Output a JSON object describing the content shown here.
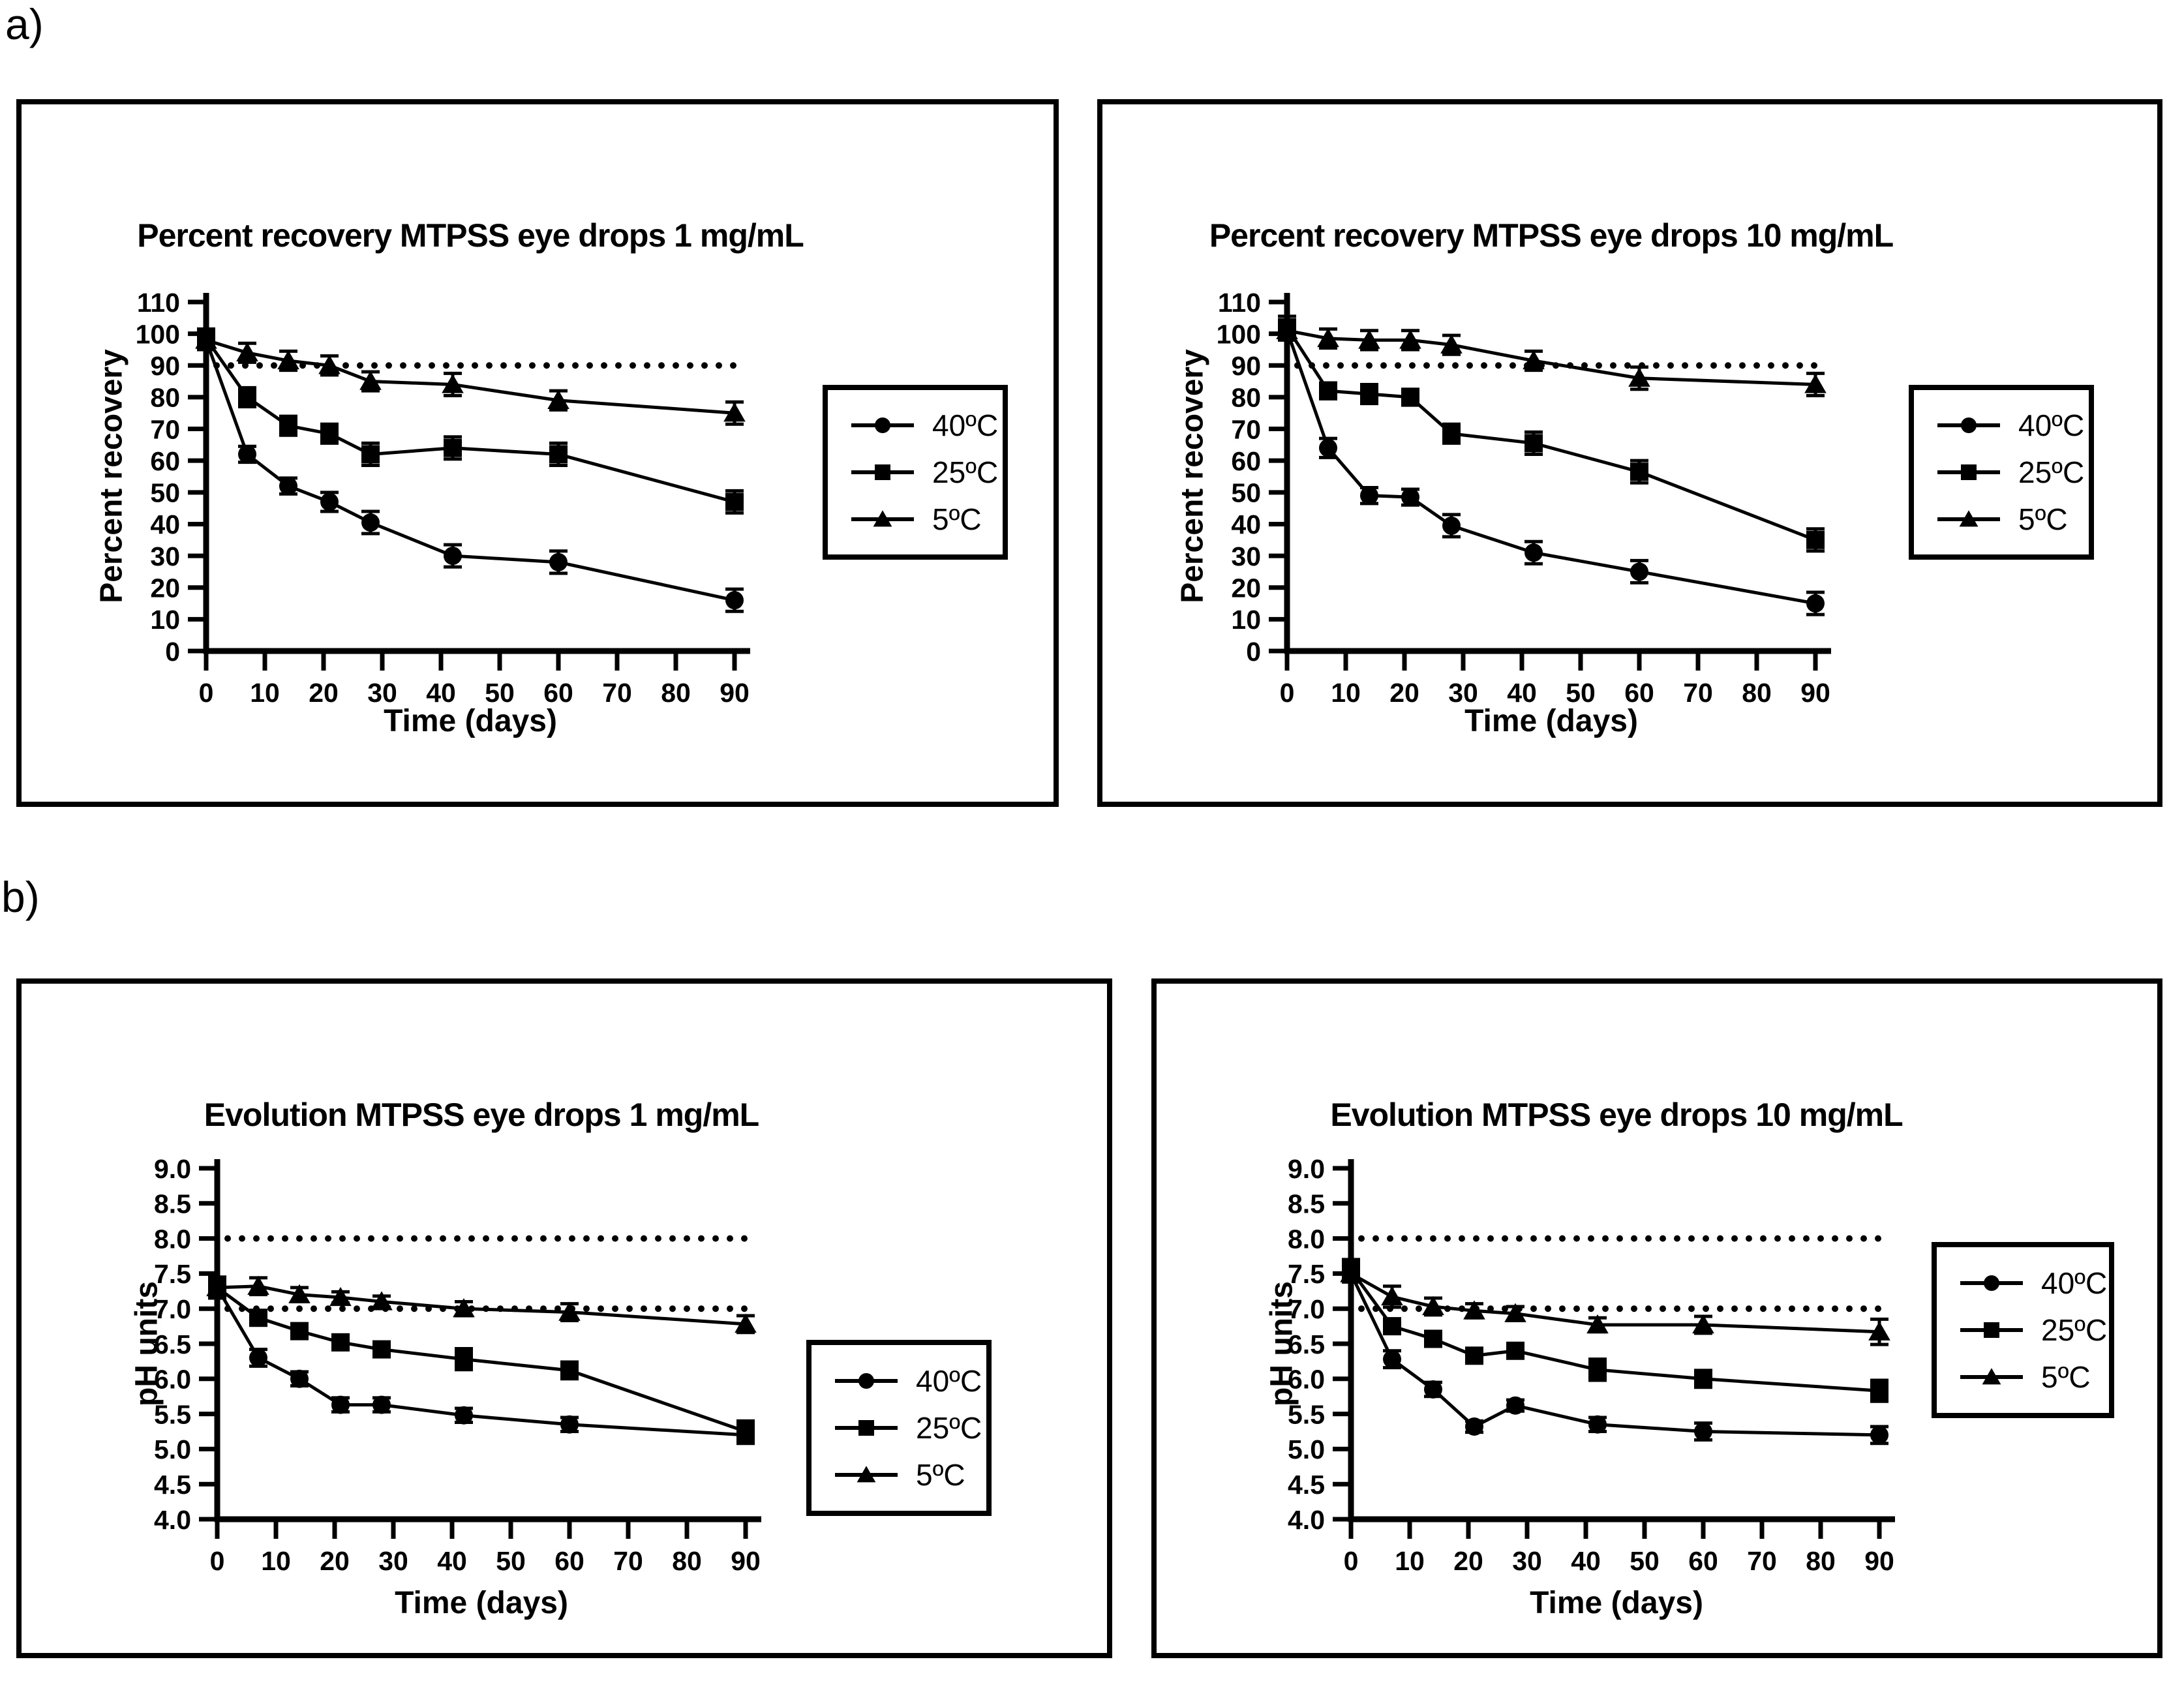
{
  "page": {
    "section_a_label": "a)",
    "section_b_label": "b)",
    "background_color": "#ffffff",
    "foreground_color": "#000000"
  },
  "chart_data": [
    {
      "id": "recovery-1mg",
      "type": "line",
      "title": "Percent recovery MTPSS eye drops 1 mg/mL",
      "xlabel": "Time (days)",
      "ylabel": "Percent recovery",
      "ylim": [
        0,
        110
      ],
      "ytick_step": 10,
      "ytick_decimals": 0,
      "xticks": [
        0,
        10,
        20,
        30,
        40,
        50,
        60,
        70,
        80,
        90
      ],
      "x": [
        0,
        7,
        14,
        21,
        28,
        42,
        60,
        90
      ],
      "reference_lines": [
        90
      ],
      "grid": "off",
      "legend_position": "right",
      "series": [
        {
          "name": "40ºC",
          "marker": "circle",
          "values": [
            98,
            62,
            52,
            47,
            40.5,
            30,
            28,
            16
          ],
          "errors": [
            3,
            2.5,
            2.5,
            3,
            3.5,
            3.5,
            3.5,
            3.5
          ]
        },
        {
          "name": "25ºC",
          "marker": "square",
          "values": [
            98.5,
            80,
            71,
            68.5,
            62,
            64,
            62,
            47
          ],
          "errors": [
            3,
            3,
            3,
            3,
            3.5,
            3.5,
            3.5,
            3.5
          ]
        },
        {
          "name": "5ºC",
          "marker": "triangle",
          "values": [
            98,
            94,
            91.5,
            90,
            85,
            84,
            79,
            75
          ],
          "errors": [
            2.5,
            3,
            3,
            3,
            3,
            3.5,
            3,
            3.5
          ]
        }
      ]
    },
    {
      "id": "recovery-10mg",
      "type": "line",
      "title": "Percent recovery MTPSS eye drops 10 mg/mL",
      "xlabel": "Time (days)",
      "ylabel": "Percent recovery",
      "ylim": [
        0,
        110
      ],
      "ytick_step": 10,
      "ytick_decimals": 0,
      "xticks": [
        0,
        10,
        20,
        30,
        40,
        50,
        60,
        70,
        80,
        90
      ],
      "x": [
        0,
        7,
        14,
        21,
        28,
        42,
        60,
        90
      ],
      "reference_lines": [
        90
      ],
      "grid": "off",
      "legend_position": "right",
      "series": [
        {
          "name": "40ºC",
          "marker": "circle",
          "values": [
            101,
            64,
            49,
            48.5,
            39.5,
            31,
            25,
            15
          ],
          "errors": [
            3,
            3,
            2.5,
            2.5,
            3.5,
            3.5,
            3.5,
            3.5
          ]
        },
        {
          "name": "25ºC",
          "marker": "square",
          "values": [
            102,
            82,
            81,
            80,
            68.5,
            65.5,
            56.5,
            35
          ],
          "errors": [
            3.5,
            2.5,
            3,
            2.5,
            3,
            3.5,
            3.5,
            3.5
          ]
        },
        {
          "name": "5ºC",
          "marker": "triangle",
          "values": [
            101,
            98.5,
            98,
            98,
            96.5,
            91.5,
            86,
            84
          ],
          "errors": [
            2.5,
            3,
            3,
            3,
            3,
            3,
            3.5,
            3.5
          ]
        }
      ]
    },
    {
      "id": "ph-1mg",
      "type": "line",
      "title": "Evolution MTPSS eye drops 1 mg/mL",
      "xlabel": "Time (days)",
      "ylabel": "pH units",
      "ylim": [
        4.0,
        9.0
      ],
      "ytick_step": 0.5,
      "ytick_decimals": 1,
      "xticks": [
        0,
        10,
        20,
        30,
        40,
        50,
        60,
        70,
        80,
        90
      ],
      "x": [
        0,
        7,
        14,
        21,
        28,
        42,
        60,
        90
      ],
      "reference_lines": [
        8.0,
        7.0
      ],
      "grid": "off",
      "legend_position": "right",
      "series": [
        {
          "name": "40ºC",
          "marker": "circle",
          "values": [
            7.3,
            6.3,
            6.0,
            5.63,
            5.63,
            5.48,
            5.35,
            5.2
          ],
          "errors": [
            0.15,
            0.12,
            0.1,
            0.1,
            0.1,
            0.1,
            0.1,
            0.12
          ]
        },
        {
          "name": "25ºC",
          "marker": "square",
          "values": [
            7.3,
            6.87,
            6.68,
            6.52,
            6.42,
            6.28,
            6.12,
            5.25
          ],
          "errors": [
            0.12,
            0.1,
            0.1,
            0.1,
            0.1,
            0.15,
            0.12,
            0.15
          ]
        },
        {
          "name": "5ºC",
          "marker": "triangle",
          "values": [
            7.3,
            7.32,
            7.2,
            7.16,
            7.1,
            7.0,
            6.95,
            6.78
          ],
          "errors": [
            0.12,
            0.12,
            0.1,
            0.08,
            0.08,
            0.1,
            0.12,
            0.12
          ]
        }
      ]
    },
    {
      "id": "ph-10mg",
      "type": "line",
      "title": "Evolution MTPSS eye drops 10 mg/mL",
      "xlabel": "Time (days)",
      "ylabel": "pH units",
      "ylim": [
        4.0,
        9.0
      ],
      "ytick_step": 0.5,
      "ytick_decimals": 1,
      "xticks": [
        0,
        10,
        20,
        30,
        40,
        50,
        60,
        70,
        80,
        90
      ],
      "x": [
        0,
        7,
        14,
        21,
        28,
        42,
        60,
        90
      ],
      "reference_lines": [
        8.0,
        7.0
      ],
      "grid": "off",
      "legend_position": "right",
      "series": [
        {
          "name": "40ºC",
          "marker": "circle",
          "values": [
            7.5,
            6.28,
            5.85,
            5.32,
            5.62,
            5.35,
            5.25,
            5.2
          ],
          "errors": [
            0.12,
            0.12,
            0.1,
            0.08,
            0.08,
            0.1,
            0.12,
            0.12
          ]
        },
        {
          "name": "25ºC",
          "marker": "square",
          "values": [
            7.55,
            6.75,
            6.57,
            6.33,
            6.4,
            6.13,
            6.0,
            5.83
          ],
          "errors": [
            0.15,
            0.1,
            0.1,
            0.1,
            0.08,
            0.15,
            0.12,
            0.15
          ]
        },
        {
          "name": "5ºC",
          "marker": "triangle",
          "values": [
            7.5,
            7.17,
            7.03,
            6.97,
            6.93,
            6.77,
            6.77,
            6.67
          ],
          "errors": [
            0.12,
            0.15,
            0.12,
            0.1,
            0.1,
            0.1,
            0.12,
            0.18
          ]
        }
      ]
    }
  ]
}
